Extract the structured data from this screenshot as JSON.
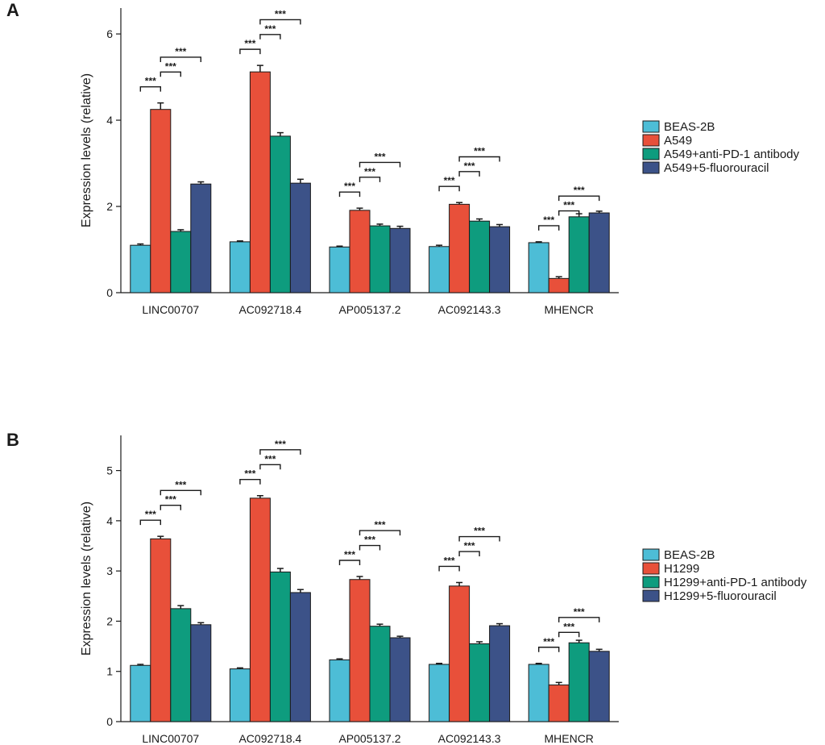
{
  "colors": {
    "series": [
      "#4dbdd6",
      "#e8503a",
      "#0e9c7e",
      "#3c5288"
    ],
    "stroke": "#1a1a1a"
  },
  "chart_data": [
    {
      "type": "bar",
      "panel_label": "A",
      "ylabel": "Expression levels (relative)",
      "ylim": [
        0,
        6.6
      ],
      "yticks": [
        0,
        2,
        4,
        6
      ],
      "categories": [
        "LINC00707",
        "AC092718.4",
        "AP005137.2",
        "AC092143.3",
        "MHENCR"
      ],
      "series": [
        {
          "name": "BEAS-2B",
          "values": [
            1.1,
            1.18,
            1.06,
            1.07,
            1.16
          ],
          "errors": [
            0.03,
            0.02,
            0.02,
            0.03,
            0.02
          ]
        },
        {
          "name": "A549",
          "values": [
            4.25,
            5.12,
            1.91,
            2.05,
            0.33
          ],
          "errors": [
            0.15,
            0.15,
            0.05,
            0.04,
            0.04
          ]
        },
        {
          "name": "A549+anti-PD-1 antibody",
          "values": [
            1.42,
            3.63,
            1.55,
            1.66,
            1.76
          ],
          "errors": [
            0.04,
            0.08,
            0.04,
            0.05,
            0.07
          ]
        },
        {
          "name": "A549+5-fluorouracil",
          "values": [
            2.52,
            2.54,
            1.49,
            1.53,
            1.85
          ],
          "errors": [
            0.05,
            0.09,
            0.05,
            0.05,
            0.04
          ]
        }
      ],
      "significance": "***",
      "legend_position": "right"
    },
    {
      "type": "bar",
      "panel_label": "B",
      "ylabel": "Expression levels (relative)",
      "ylim": [
        0,
        5.7
      ],
      "yticks": [
        0,
        1,
        2,
        3,
        4,
        5
      ],
      "categories": [
        "LINC00707",
        "AC092718.4",
        "AP005137.2",
        "AC092143.3",
        "MHENCR"
      ],
      "series": [
        {
          "name": "BEAS-2B",
          "values": [
            1.12,
            1.05,
            1.23,
            1.14,
            1.14
          ],
          "errors": [
            0.02,
            0.02,
            0.02,
            0.02,
            0.02
          ]
        },
        {
          "name": "H1299",
          "values": [
            3.64,
            4.45,
            2.83,
            2.7,
            0.73
          ],
          "errors": [
            0.05,
            0.05,
            0.06,
            0.07,
            0.05
          ]
        },
        {
          "name": "H1299+anti-PD-1 antibody",
          "values": [
            2.25,
            2.98,
            1.9,
            1.55,
            1.57
          ],
          "errors": [
            0.06,
            0.07,
            0.04,
            0.04,
            0.05
          ]
        },
        {
          "name": "H1299+5-fluorouracil",
          "values": [
            1.93,
            2.57,
            1.67,
            1.91,
            1.4
          ],
          "errors": [
            0.04,
            0.06,
            0.03,
            0.04,
            0.04
          ]
        }
      ],
      "significance": "***",
      "legend_position": "right"
    }
  ]
}
